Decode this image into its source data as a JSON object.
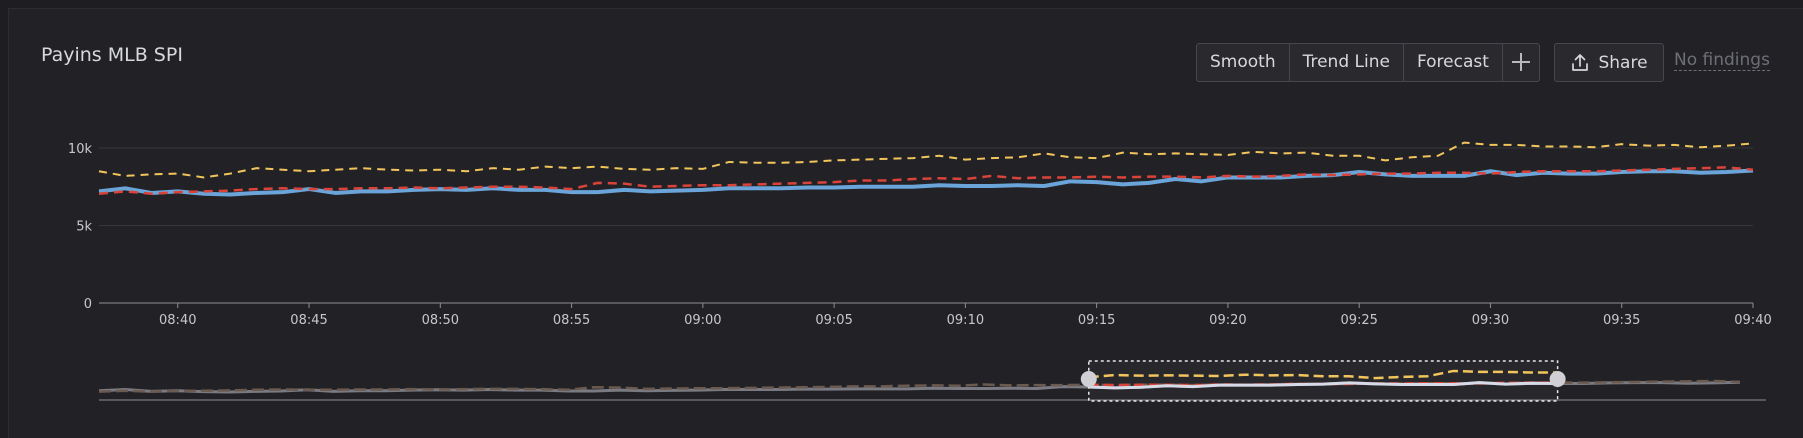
{
  "panel": {
    "title": "Payins MLB SPI",
    "toolbar": {
      "smooth_label": "Smooth",
      "trend_label": "Trend Line",
      "forecast_label": "Forecast",
      "add_icon": "plus-icon",
      "share_label": "Share",
      "share_icon": "upload-icon",
      "findings_label": "No findings"
    }
  },
  "colors": {
    "actual": "#6aa4d8",
    "expected": "#d9433a",
    "upper": "#f2c55c",
    "grid": "#36363c",
    "overview_line": "#7a7a82"
  },
  "chart_data": {
    "type": "line",
    "x_start": "08:37",
    "x_end": "09:40",
    "x_ticks": [
      "08:40",
      "08:45",
      "08:50",
      "08:55",
      "09:00",
      "09:05",
      "09:10",
      "09:15",
      "09:20",
      "09:25",
      "09:30",
      "09:35",
      "09:40"
    ],
    "y_ticks": [
      "0",
      "5k",
      "10k"
    ],
    "ylim": [
      0,
      10000
    ],
    "grid": true,
    "series": [
      {
        "values": [
          7200,
          7400,
          7100,
          7200,
          7050,
          7000,
          7100,
          7150,
          7350,
          7100,
          7200,
          7200,
          7300,
          7350,
          7300,
          7400,
          7300,
          7300,
          7150,
          7150,
          7300,
          7200,
          7250,
          7300,
          7400,
          7400,
          7400,
          7450,
          7450,
          7500,
          7500,
          7500,
          7600,
          7550,
          7550,
          7600,
          7550,
          7850,
          7800,
          7650,
          7750,
          8000,
          7850,
          8100,
          8100,
          8100,
          8200,
          8250,
          8450,
          8300,
          8200,
          8200,
          8200,
          8500,
          8250,
          8400,
          8350,
          8350,
          8450,
          8500,
          8500,
          8400,
          8450,
          8550
        ]
      },
      {
        "values": [
          7050,
          7200,
          7050,
          7150,
          7200,
          7250,
          7350,
          7400,
          7350,
          7350,
          7400,
          7400,
          7450,
          7400,
          7450,
          7500,
          7500,
          7450,
          7350,
          7750,
          7700,
          7500,
          7550,
          7600,
          7600,
          7650,
          7700,
          7750,
          7800,
          7900,
          7900,
          8000,
          8050,
          8000,
          8200,
          8050,
          8100,
          8100,
          8150,
          8100,
          8150,
          8150,
          8100,
          8200,
          8150,
          8200,
          8300,
          8250,
          8300,
          8350,
          8350,
          8400,
          8400,
          8350,
          8450,
          8500,
          8500,
          8500,
          8550,
          8600,
          8650,
          8700,
          8750,
          8600
        ]
      },
      {
        "values": [
          8500,
          8200,
          8300,
          8350,
          8100,
          8350,
          8700,
          8600,
          8500,
          8600,
          8700,
          8600,
          8550,
          8600,
          8500,
          8700,
          8600,
          8800,
          8700,
          8800,
          8650,
          8600,
          8700,
          8650,
          9100,
          9050,
          9050,
          9100,
          9200,
          9250,
          9300,
          9350,
          9500,
          9250,
          9350,
          9400,
          9650,
          9400,
          9350,
          9700,
          9600,
          9650,
          9600,
          9550,
          9750,
          9650,
          9700,
          9500,
          9500,
          9200,
          9400,
          9500,
          10350,
          10200,
          10200,
          10100,
          10100,
          10050,
          10250,
          10150,
          10200,
          10050,
          10150,
          10300
        ]
      }
    ],
    "overview": {
      "selection_start": "09:15",
      "selection_end": "09:33"
    }
  }
}
